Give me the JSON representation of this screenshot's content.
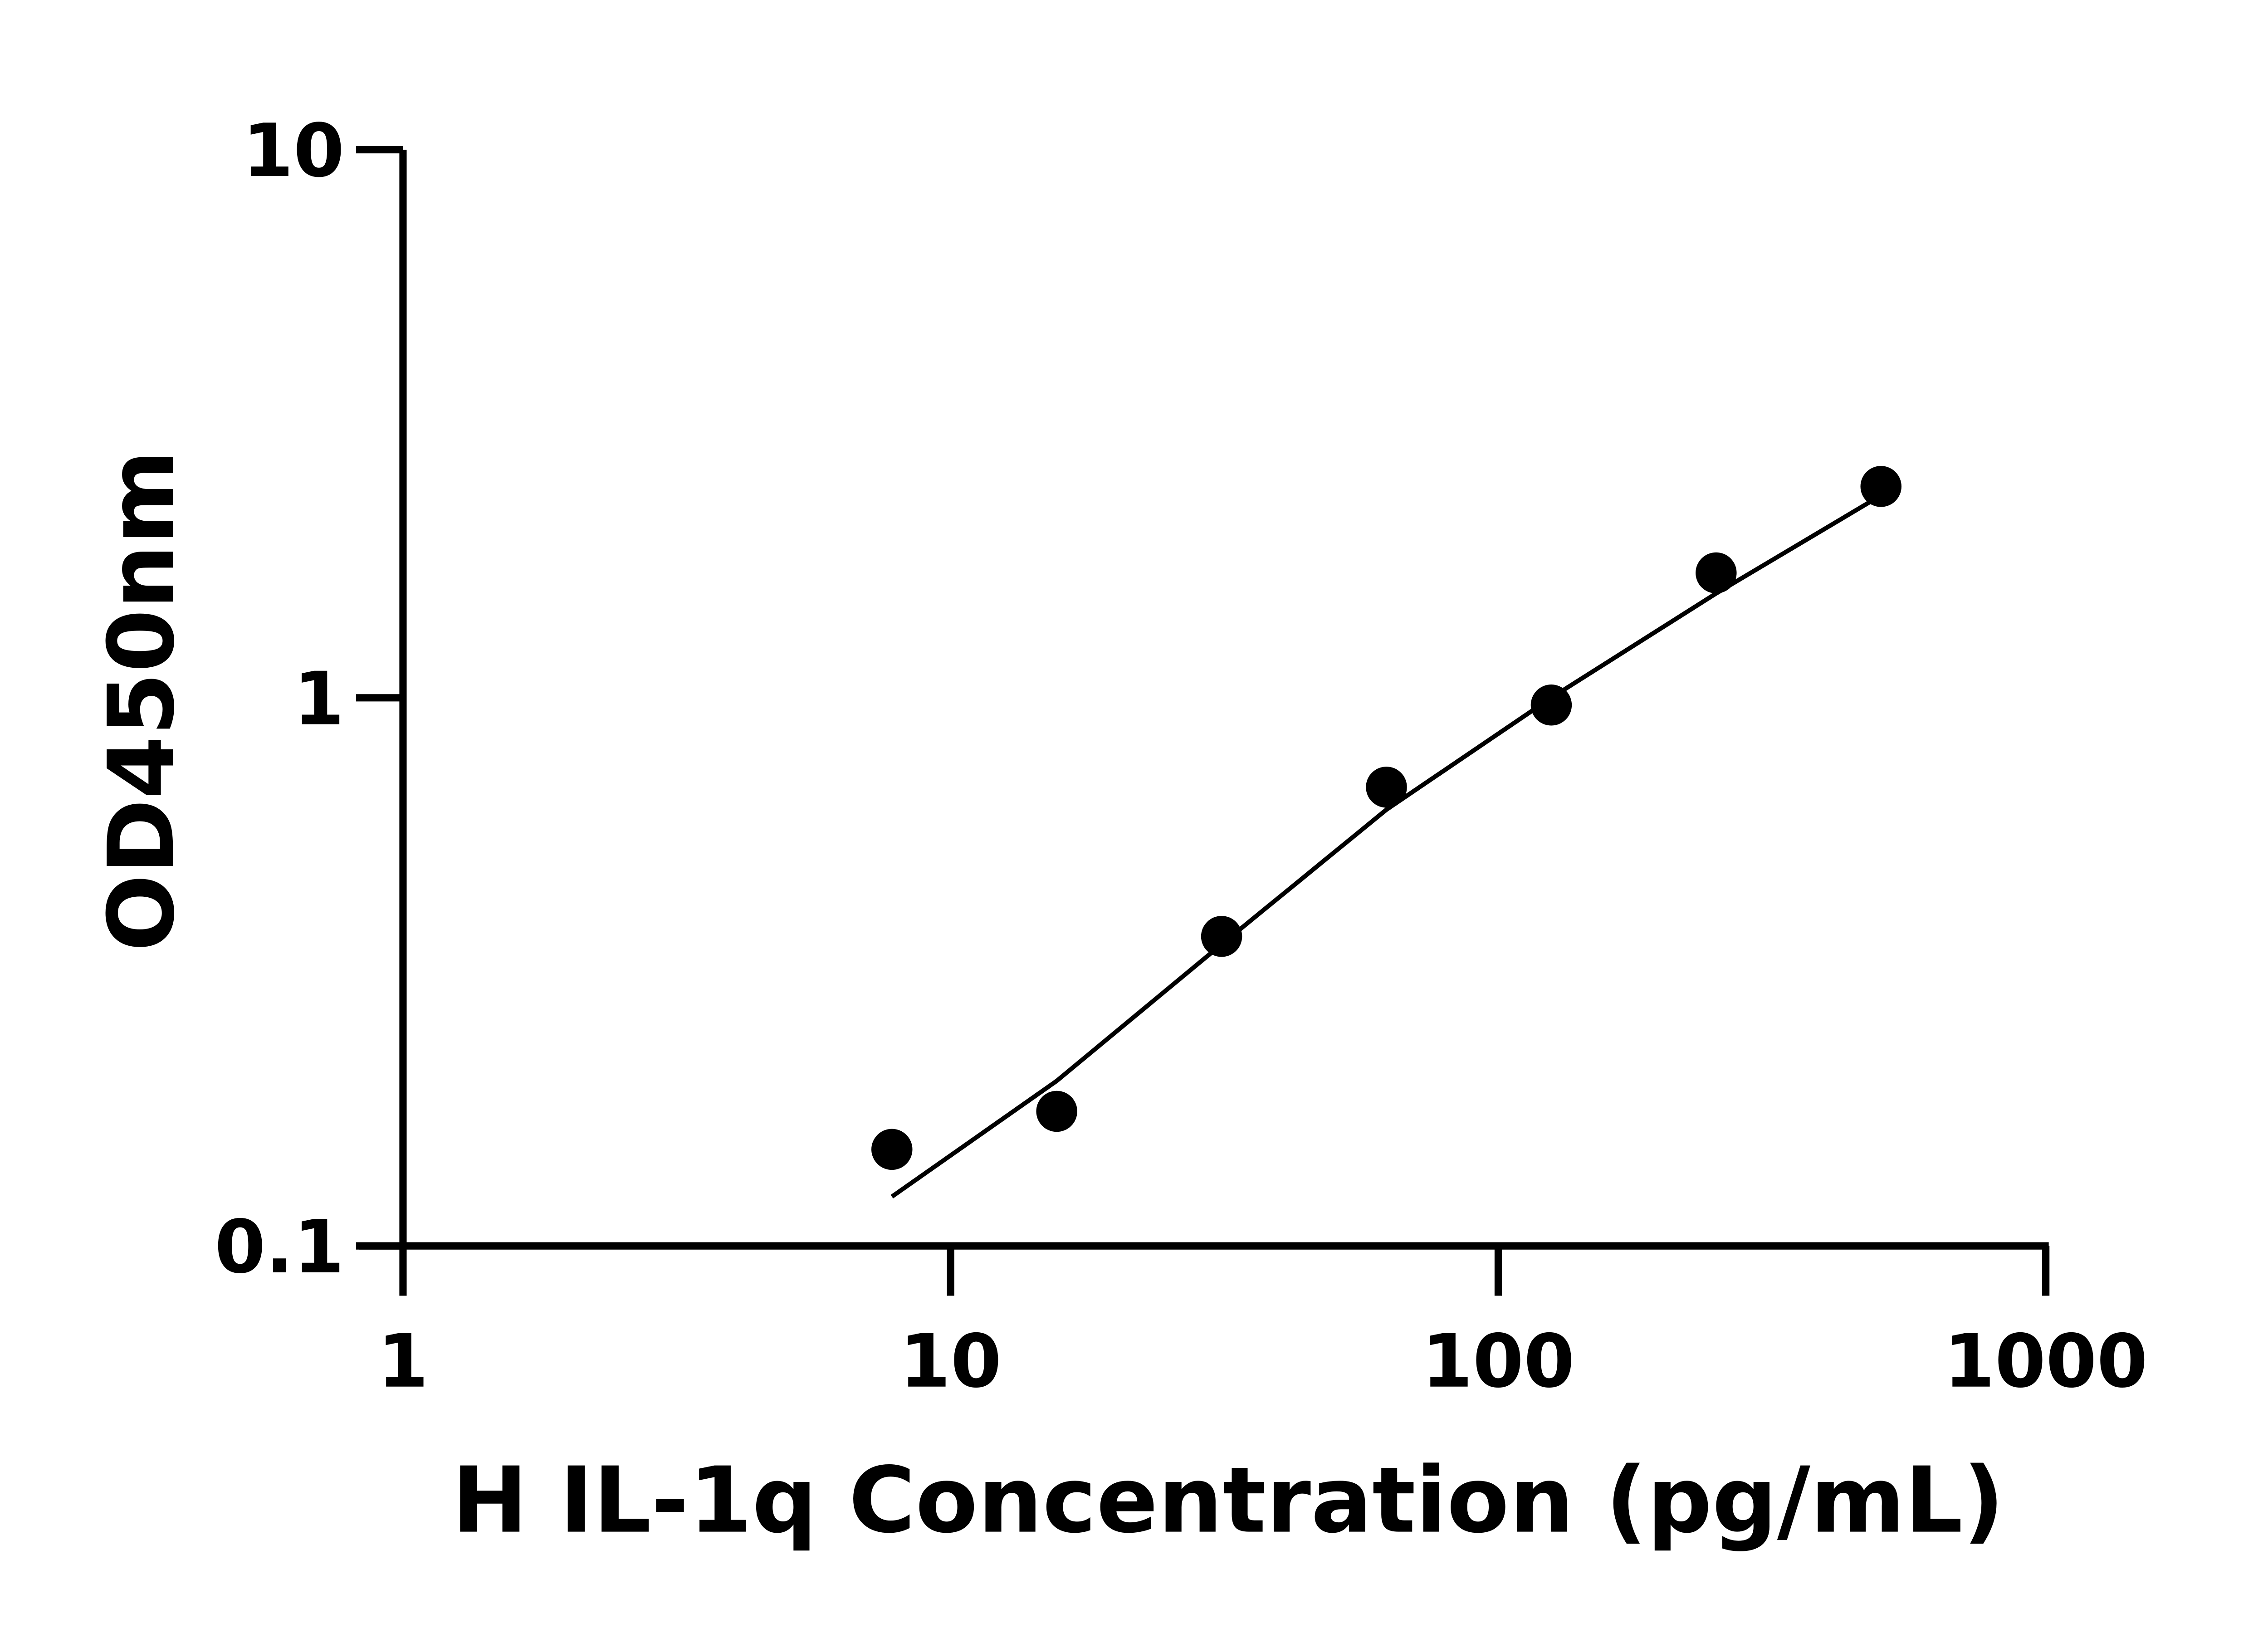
{
  "chart_data": {
    "type": "scatter",
    "title": "",
    "xlabel": "H IL-1q Concentration (pg/mL)",
    "ylabel": "OD450nm",
    "x_scale": "log",
    "y_scale": "log",
    "xlim": [
      1,
      1000
    ],
    "ylim": [
      0.1,
      10
    ],
    "x_ticks": [
      "1",
      "10",
      "100",
      "1000"
    ],
    "y_ticks": [
      "0.1",
      "1",
      "10"
    ],
    "grid": false,
    "points": {
      "x": [
        7.8125,
        15.625,
        31.25,
        62.5,
        125,
        250,
        500
      ],
      "y": [
        0.15,
        0.176,
        0.367,
        0.687,
        0.97,
        1.69,
        2.43
      ]
    },
    "fit_curve": {
      "x": [
        7.8125,
        15.625,
        31.25,
        62.5,
        125,
        250,
        500
      ],
      "y": [
        0.123,
        0.2,
        0.355,
        0.625,
        1.0,
        1.55,
        2.34
      ]
    },
    "colors": {
      "marks": "#000000",
      "axes": "#000000"
    }
  }
}
